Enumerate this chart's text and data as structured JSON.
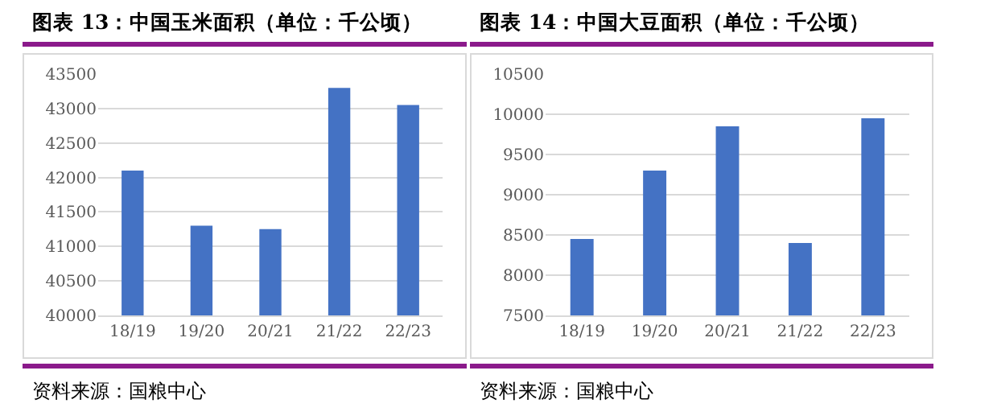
{
  "chart_data": [
    {
      "type": "bar",
      "title": "图表 13：中国玉米面积（单位：千公顷）",
      "categories": [
        "18/19",
        "19/20",
        "20/21",
        "21/22",
        "22/23"
      ],
      "values": [
        42100,
        41300,
        41250,
        43300,
        43050
      ],
      "color": "#4472c4",
      "ylim": [
        40000,
        43500
      ],
      "yticks": [
        40000,
        40500,
        41000,
        41500,
        42000,
        42500,
        43000,
        43500
      ],
      "grid": "y",
      "annotations": [
        "资料来源：国粮中心"
      ]
    },
    {
      "type": "bar",
      "title": "图表 14：中国大豆面积（单位：千公顷）",
      "categories": [
        "18/19",
        "19/20",
        "20/21",
        "21/22",
        "22/23"
      ],
      "values": [
        8450,
        9300,
        9850,
        8400,
        9950
      ],
      "color": "#4472c4",
      "ylim": [
        7500,
        10500
      ],
      "yticks": [
        7500,
        8000,
        8500,
        9000,
        9500,
        10000,
        10500
      ],
      "grid": "y",
      "annotations": [
        "资料来源：国粮中心"
      ]
    }
  ]
}
